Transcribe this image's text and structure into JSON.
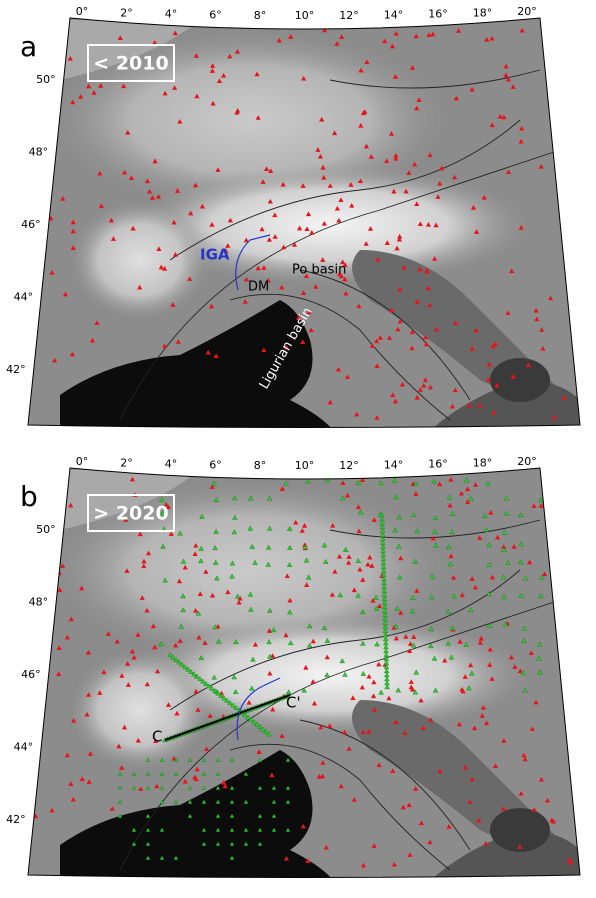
{
  "panels": [
    {
      "letter": "a",
      "box_label": "< 2010",
      "lon_labels": [
        "0°",
        "2°",
        "4°",
        "6°",
        "8°",
        "10°",
        "12°",
        "14°",
        "16°",
        "18°",
        "20°"
      ],
      "lat_labels": [
        "50°",
        "48°",
        "46°",
        "44°",
        "42°"
      ],
      "annotations": [
        "IGA",
        "DM",
        "Po basin",
        "Ligurian basin"
      ]
    },
    {
      "letter": "b",
      "box_label": "> 2020",
      "lon_labels": [
        "0°",
        "2°",
        "4°",
        "6°",
        "8°",
        "10°",
        "12°",
        "14°",
        "16°",
        "18°",
        "20°"
      ],
      "lat_labels": [
        "50°",
        "48°",
        "46°",
        "44°",
        "42°"
      ],
      "annotations": [
        "C",
        "C'"
      ]
    }
  ]
}
